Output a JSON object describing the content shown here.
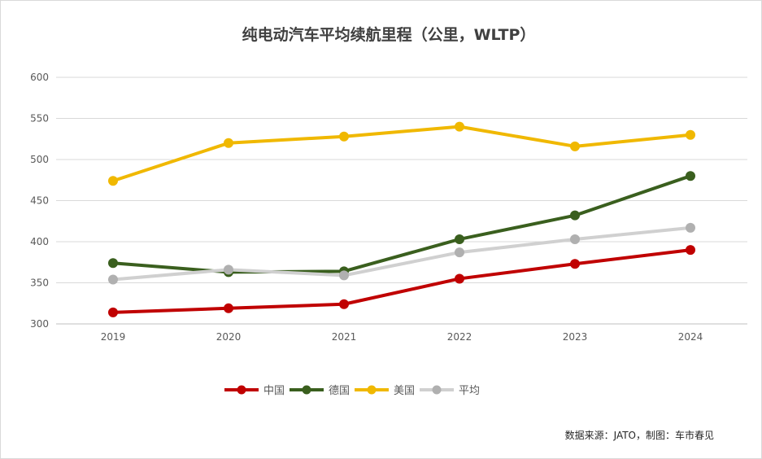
{
  "chart_data": {
    "type": "line",
    "title": "纯电动汽车平均续航里程（公里，WLTP）",
    "categories": [
      "2019",
      "2020",
      "2021",
      "2022",
      "2023",
      "2024"
    ],
    "ylim": [
      300,
      600
    ],
    "yticks": [
      300,
      350,
      400,
      450,
      500,
      550,
      600
    ],
    "grid": true,
    "legend_position": "bottom",
    "series": [
      {
        "name": "中国",
        "color": "#c00000",
        "values": [
          314,
          319,
          324,
          355,
          373,
          390
        ]
      },
      {
        "name": "德国",
        "color": "#3a5f1e",
        "values": [
          374,
          363,
          364,
          403,
          432,
          480
        ]
      },
      {
        "name": "美国",
        "color": "#f0b800",
        "values": [
          474,
          520,
          528,
          540,
          516,
          530
        ]
      },
      {
        "name": "平均",
        "color": "#b0b0b0",
        "line_color": "#d0d0d0",
        "values": [
          354,
          366,
          359,
          387,
          403,
          417
        ]
      }
    ],
    "source": "数据来源：JATO，制图：车市春见"
  }
}
